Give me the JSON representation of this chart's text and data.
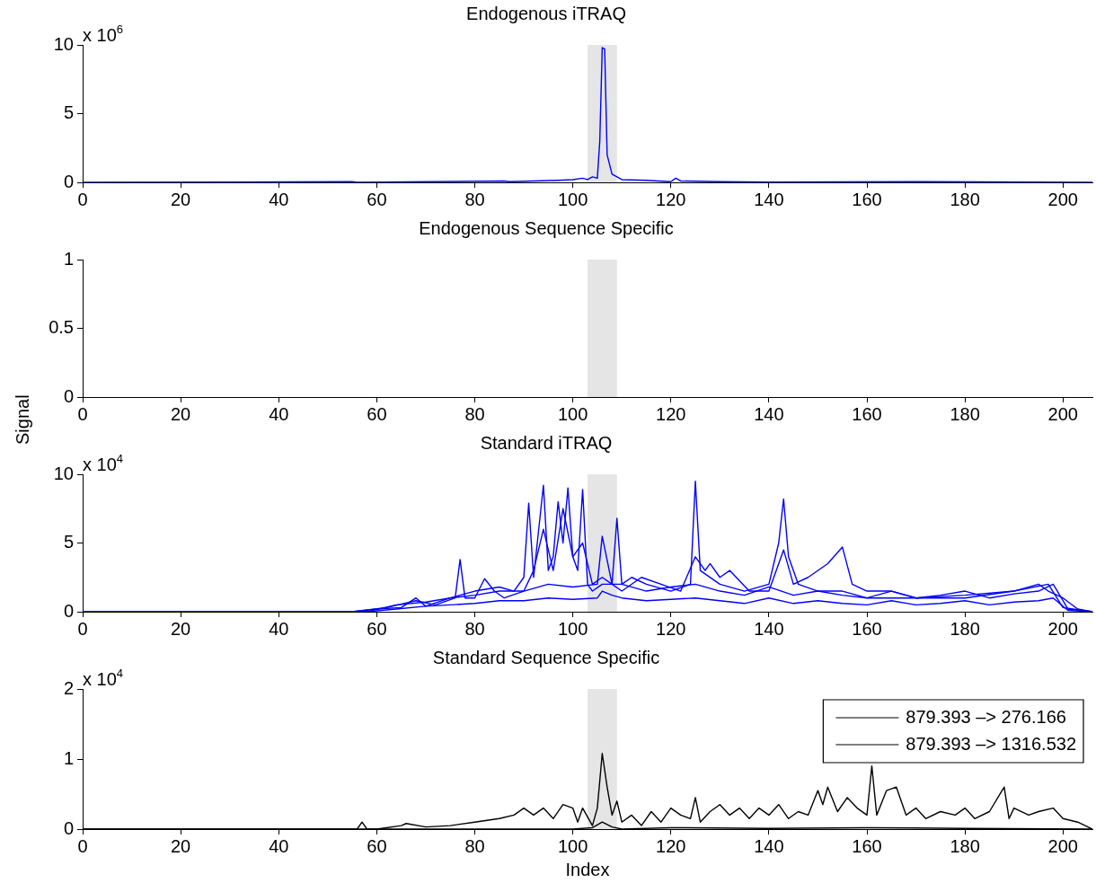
{
  "chart_data": [
    {
      "type": "line",
      "title": "Endogenous iTRAQ",
      "annotations": [
        "x 10$^{6}$"
      ],
      "xlim": [
        0,
        206
      ],
      "xticks": [
        0,
        20,
        40,
        60,
        80,
        100,
        120,
        140,
        160,
        180,
        200
      ],
      "ylim": [
        0,
        10
      ],
      "yticks": [
        0,
        5,
        10
      ],
      "grid": false,
      "marker": "none",
      "line_style": "solid",
      "bands": [
        {
          "axis": "x",
          "from": 103,
          "to": 109,
          "color": "#e5e5e5"
        }
      ],
      "series": [
        {
          "color": "#0000ff",
          "x": [
            0,
            55,
            56,
            86,
            87,
            97,
            100,
            102,
            103,
            104,
            105,
            105.5,
            106,
            106.5,
            107,
            108,
            109,
            110,
            115,
            120,
            121,
            122,
            130,
            140,
            171,
            206
          ],
          "values": [
            0,
            0.05,
            0,
            0.1,
            0.05,
            0.15,
            0.2,
            0.3,
            0.2,
            0.4,
            0.3,
            3,
            9.8,
            9.7,
            2,
            0.6,
            0.4,
            0.2,
            0.15,
            0.05,
            0.3,
            0.1,
            0.05,
            0.02,
            0.05,
            0
          ]
        }
      ]
    },
    {
      "type": "line",
      "title": "Endogenous Sequence Specific",
      "xlim": [
        0,
        206
      ],
      "xticks": [
        0,
        20,
        40,
        60,
        80,
        100,
        120,
        140,
        160,
        180,
        200
      ],
      "ylim": [
        0,
        1
      ],
      "yticks": [
        0,
        0.5,
        1
      ],
      "grid": false,
      "bands": [
        {
          "axis": "x",
          "from": 103,
          "to": 109,
          "color": "#e5e5e5"
        }
      ]
    },
    {
      "type": "line",
      "title": "Standard iTRAQ",
      "ylabel": "Signal",
      "annotations": [
        "x 10$^{4}$"
      ],
      "xlim": [
        0,
        206
      ],
      "xticks": [
        0,
        20,
        40,
        60,
        80,
        100,
        120,
        140,
        160,
        180,
        200
      ],
      "ylim": [
        0,
        10
      ],
      "yticks": [
        0,
        5,
        10
      ],
      "grid": false,
      "marker": "none",
      "line_style": "solid",
      "bands": [
        {
          "axis": "x",
          "from": 103,
          "to": 109,
          "color": "#e5e5e5"
        }
      ],
      "series": [
        {
          "color": "#0000ff",
          "x": [
            0,
            55,
            60,
            65,
            68,
            70,
            75,
            80,
            85,
            88,
            90,
            91,
            92,
            94,
            95,
            96,
            97,
            98,
            99,
            100,
            101,
            102,
            103,
            104,
            106,
            108,
            109,
            110,
            112,
            115,
            120,
            124,
            125,
            126,
            130,
            135,
            140,
            142,
            143,
            144,
            146,
            150,
            155,
            160,
            170,
            180,
            190,
            195,
            197,
            200,
            203,
            206
          ],
          "values": [
            0,
            0,
            0.2,
            0.3,
            1,
            0.4,
            1,
            1.5,
            1.8,
            1.5,
            2.5,
            7.9,
            2.5,
            9.2,
            3,
            4,
            8,
            5,
            9,
            4,
            3,
            8.9,
            2,
            1.5,
            2,
            2,
            6.8,
            2,
            2.5,
            2,
            1.5,
            2,
            9.5,
            3,
            2,
            1.5,
            2,
            5,
            8.2,
            4,
            2,
            1.5,
            1.5,
            1,
            1,
            1,
            1.5,
            2,
            1.5,
            1,
            0.2,
            0
          ]
        },
        {
          "color": "#0000ff",
          "x": [
            0,
            55,
            62,
            68,
            72,
            76,
            77,
            78,
            80,
            82,
            84,
            86,
            90,
            92,
            94,
            96,
            98,
            100,
            102,
            104,
            106,
            108,
            110,
            114,
            118,
            122,
            125,
            127,
            128,
            130,
            132,
            136,
            140,
            143,
            145,
            148,
            152,
            155,
            157,
            160,
            165,
            170,
            180,
            190,
            197,
            200,
            206
          ],
          "values": [
            0,
            0,
            0.3,
            0.8,
            0.5,
            1,
            3.8,
            1,
            1,
            2.4,
            1.5,
            1,
            1.5,
            3,
            6,
            3,
            7.5,
            4,
            5,
            2,
            2.5,
            2,
            1.5,
            2.5,
            2,
            1.5,
            4,
            3,
            3.5,
            2.5,
            3,
            1.5,
            1.5,
            4.5,
            2,
            2.5,
            3.5,
            4.7,
            2,
            1.5,
            1.5,
            1,
            1.2,
            1.5,
            2,
            0.3,
            0
          ]
        },
        {
          "color": "#0000ff",
          "x": [
            0,
            58,
            64,
            70,
            75,
            80,
            85,
            90,
            95,
            100,
            105,
            106,
            108,
            110,
            115,
            120,
            125,
            130,
            135,
            140,
            145,
            150,
            155,
            160,
            165,
            170,
            175,
            180,
            185,
            190,
            195,
            198,
            201,
            206
          ],
          "values": [
            0,
            0,
            0.5,
            0.7,
            1,
            1.2,
            1.5,
            1.5,
            2,
            1.8,
            2,
            5.5,
            2,
            2,
            1.5,
            1.8,
            2,
            1.5,
            1.2,
            1.8,
            1.2,
            1.5,
            1.2,
            1,
            1.5,
            1,
            1.2,
            1.5,
            1,
            1.3,
            1.5,
            2,
            0.2,
            0
          ]
        },
        {
          "color": "#0000ff",
          "x": [
            0,
            58,
            64,
            70,
            75,
            80,
            85,
            90,
            95,
            100,
            105,
            106,
            108,
            110,
            115,
            120,
            125,
            130,
            135,
            140,
            145,
            150,
            155,
            160,
            165,
            170,
            175,
            180,
            185,
            190,
            195,
            198,
            201,
            206
          ],
          "values": [
            0,
            0,
            0.2,
            0.4,
            0.5,
            0.6,
            0.8,
            0.8,
            1,
            0.9,
            1,
            1.5,
            1.2,
            1,
            0.8,
            0.9,
            1,
            0.8,
            0.6,
            1,
            0.6,
            0.8,
            0.6,
            0.5,
            0.8,
            0.5,
            0.6,
            0.8,
            0.5,
            0.7,
            0.8,
            1,
            0.1,
            0
          ]
        }
      ]
    },
    {
      "type": "line",
      "title": "Standard Sequence Specific",
      "xlabel": "Index",
      "annotations": [
        "x 10$^{4}$"
      ],
      "xlim": [
        0,
        206
      ],
      "xticks": [
        0,
        20,
        40,
        60,
        80,
        100,
        120,
        140,
        160,
        180,
        200
      ],
      "ylim": [
        0,
        2
      ],
      "yticks": [
        0,
        1,
        2
      ],
      "grid": false,
      "marker": "none",
      "line_style": "solid",
      "legend": "top right",
      "bands": [
        {
          "axis": "x",
          "from": 103,
          "to": 109,
          "color": "#e5e5e5"
        }
      ],
      "series": [
        {
          "name": "879.393 –> 276.166",
          "color": "#000000",
          "x": [
            0,
            56,
            57,
            58,
            60,
            65,
            66,
            70,
            75,
            80,
            85,
            88,
            90,
            92,
            94,
            96,
            98,
            100,
            101,
            102,
            104,
            105,
            106,
            107,
            108,
            109,
            110,
            112,
            114,
            116,
            118,
            120,
            122,
            124,
            125,
            126,
            128,
            130,
            132,
            134,
            136,
            138,
            140,
            142,
            144,
            146,
            148,
            150,
            151,
            152,
            154,
            156,
            158,
            160,
            161,
            162,
            164,
            166,
            168,
            170,
            172,
            175,
            178,
            180,
            182,
            185,
            188,
            189,
            190,
            193,
            195,
            198,
            200,
            203,
            206
          ],
          "values": [
            0,
            0,
            0.1,
            0,
            0,
            0.05,
            0.08,
            0.03,
            0.05,
            0.1,
            0.15,
            0.2,
            0.3,
            0.2,
            0.3,
            0.15,
            0.35,
            0.3,
            0.1,
            0.3,
            0.05,
            0.3,
            1.08,
            0.6,
            0.2,
            0.4,
            0.1,
            0.2,
            0.05,
            0.25,
            0.1,
            0.3,
            0.2,
            0.15,
            0.45,
            0.1,
            0.25,
            0.35,
            0.2,
            0.3,
            0.15,
            0.3,
            0.2,
            0.35,
            0.15,
            0.25,
            0.2,
            0.55,
            0.35,
            0.6,
            0.25,
            0.45,
            0.3,
            0.2,
            0.9,
            0.2,
            0.55,
            0.6,
            0.2,
            0.3,
            0.15,
            0.25,
            0.2,
            0.3,
            0.15,
            0.25,
            0.6,
            0.15,
            0.3,
            0.2,
            0.25,
            0.3,
            0.15,
            0.1,
            0
          ]
        },
        {
          "name": "879.393 –> 1316.532",
          "color": "#000000",
          "x": [
            0,
            100,
            104,
            106,
            108,
            110,
            120,
            140,
            160,
            180,
            206
          ],
          "values": [
            0,
            0,
            0.02,
            0.1,
            0.03,
            0,
            0.02,
            0.01,
            0.02,
            0.01,
            0
          ]
        }
      ]
    }
  ]
}
